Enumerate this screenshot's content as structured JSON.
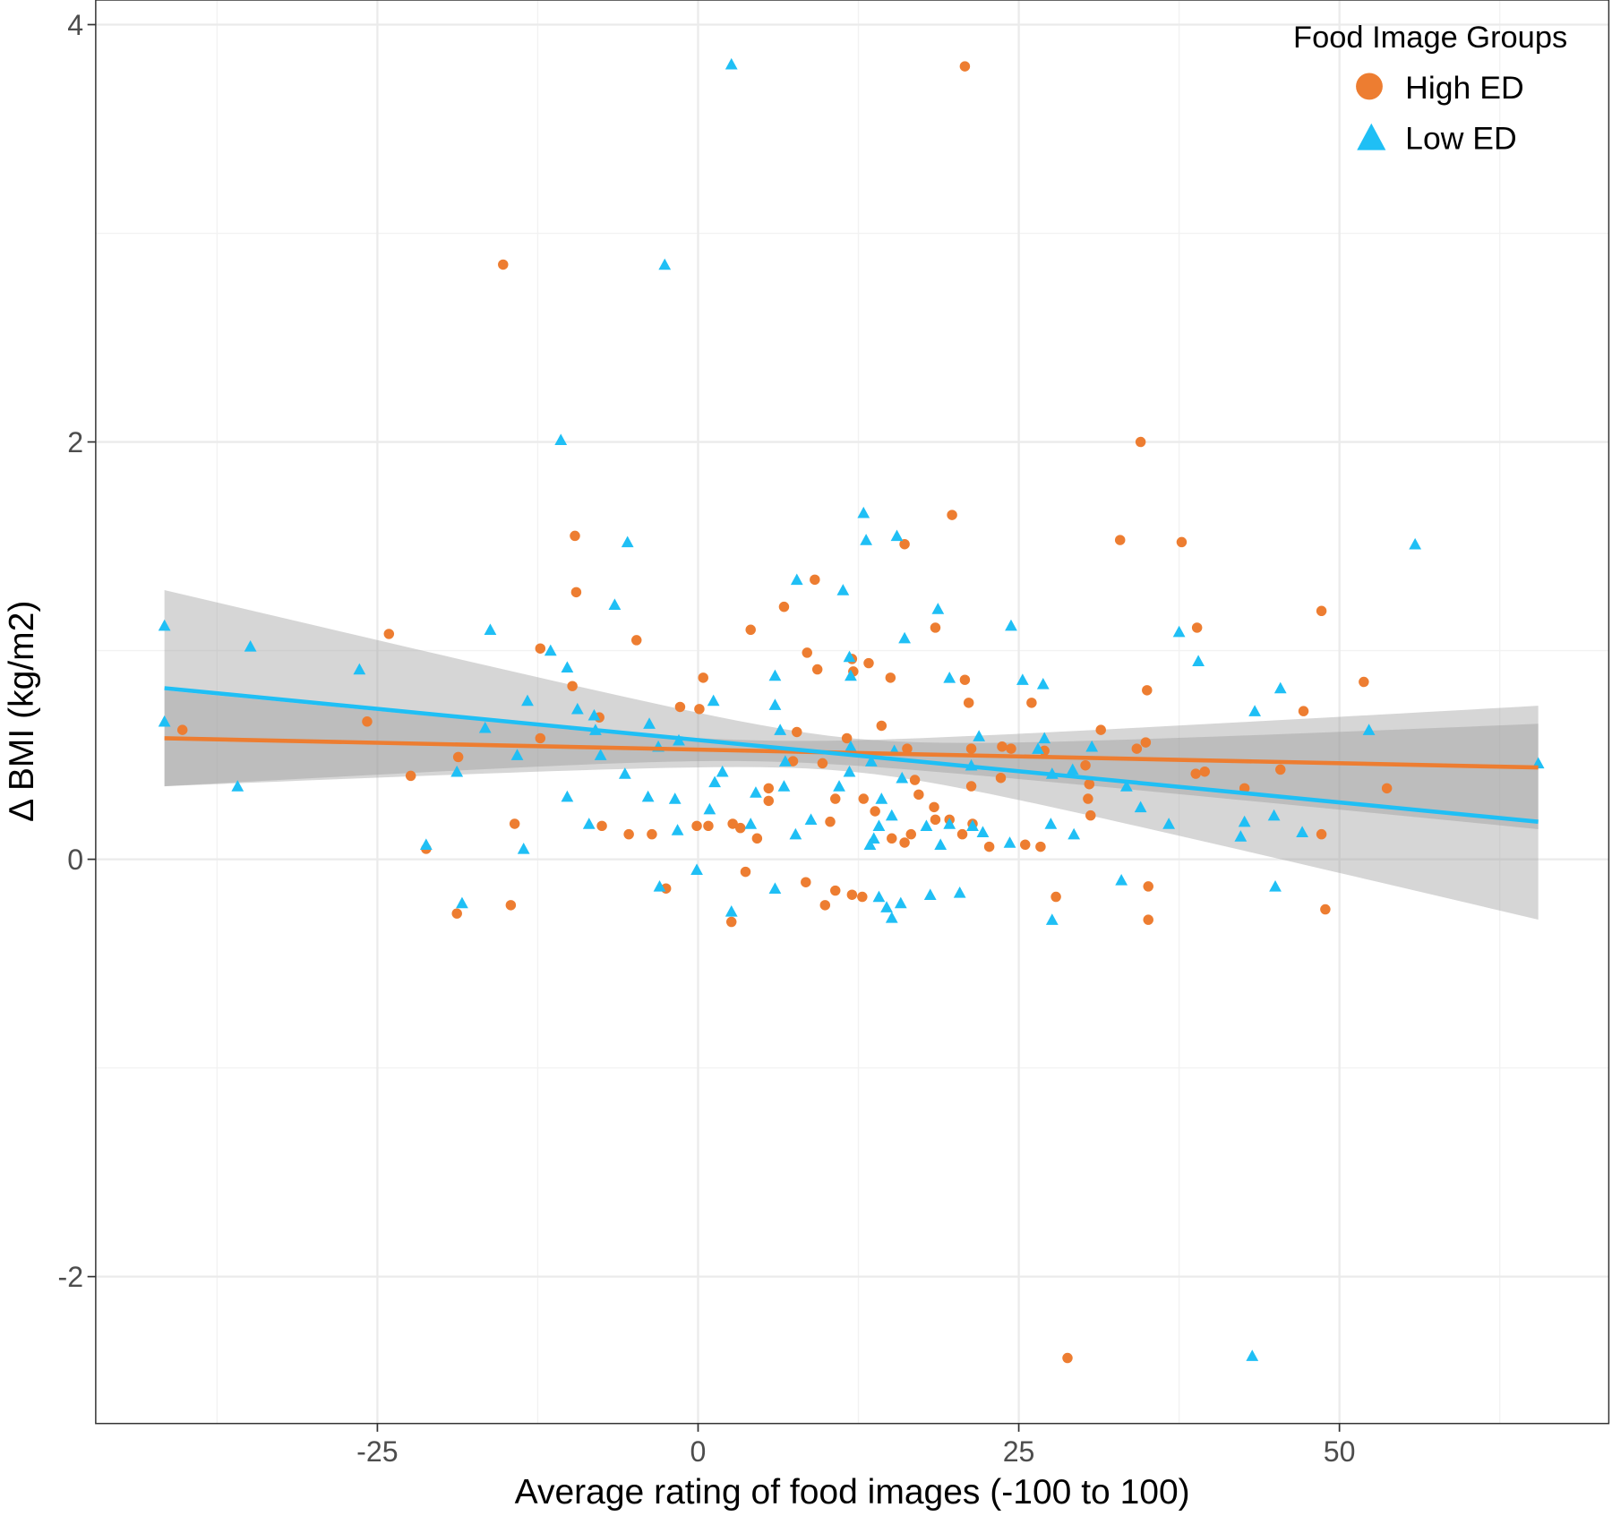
{
  "chart_data": {
    "type": "scatter",
    "title": "",
    "xlabel": "Average rating of food images (-100 to 100)",
    "ylabel": "Δ BMI (kg/m2)",
    "xlim": [
      -46.96,
      71.0
    ],
    "ylim": [
      -2.704,
      4.118
    ],
    "x_ticks": [
      -25,
      0,
      25,
      50
    ],
    "x_tick_labels": [
      "-25",
      "0",
      "25",
      "50"
    ],
    "y_ticks": [
      -2,
      0,
      2,
      4
    ],
    "y_tick_labels": [
      "-2",
      "0",
      "2",
      "4"
    ],
    "grid": true,
    "legend": {
      "title": "Food Image Groups",
      "placement": "top-right"
    },
    "series": [
      {
        "name": "High ED",
        "marker": "circle",
        "color": "#ED7D31",
        "fit": {
          "x_range": [
            -41.6,
            65.5
          ],
          "y_at_start": 0.58,
          "y_at_end": 0.44,
          "se_min": 0.05,
          "se_center_x": 5,
          "se_k": 2.32e-05
        },
        "points": [
          [
            20.8,
            3.8
          ],
          [
            -15.2,
            2.85
          ],
          [
            34.5,
            2.0
          ],
          [
            19.8,
            1.65
          ],
          [
            -9.6,
            1.55
          ],
          [
            32.9,
            1.53
          ],
          [
            37.7,
            1.52
          ],
          [
            16.1,
            1.51
          ],
          [
            -9.5,
            1.28
          ],
          [
            9.1,
            1.34
          ],
          [
            6.7,
            1.21
          ],
          [
            48.6,
            1.19
          ],
          [
            -24.1,
            1.08
          ],
          [
            4.1,
            1.1
          ],
          [
            18.5,
            1.11
          ],
          [
            38.9,
            1.11
          ],
          [
            -4.8,
            1.05
          ],
          [
            -12.3,
            1.01
          ],
          [
            8.5,
            0.99
          ],
          [
            12.0,
            0.96
          ],
          [
            13.3,
            0.94
          ],
          [
            9.3,
            0.91
          ],
          [
            12.1,
            0.9
          ],
          [
            0.4,
            0.87
          ],
          [
            15.0,
            0.87
          ],
          [
            20.8,
            0.86
          ],
          [
            51.9,
            0.85
          ],
          [
            -9.8,
            0.83
          ],
          [
            35.0,
            0.81
          ],
          [
            -1.4,
            0.73
          ],
          [
            0.1,
            0.72
          ],
          [
            21.1,
            0.75
          ],
          [
            26.0,
            0.75
          ],
          [
            47.2,
            0.71
          ],
          [
            -40.2,
            0.62
          ],
          [
            -25.8,
            0.66
          ],
          [
            -7.7,
            0.68
          ],
          [
            14.3,
            0.64
          ],
          [
            31.4,
            0.62
          ],
          [
            7.7,
            0.61
          ],
          [
            -12.3,
            0.58
          ],
          [
            11.6,
            0.58
          ],
          [
            34.9,
            0.56
          ],
          [
            21.3,
            0.53
          ],
          [
            23.7,
            0.54
          ],
          [
            24.4,
            0.53
          ],
          [
            27.0,
            0.52
          ],
          [
            16.3,
            0.53
          ],
          [
            34.2,
            0.53
          ],
          [
            -18.7,
            0.49
          ],
          [
            7.4,
            0.47
          ],
          [
            9.7,
            0.46
          ],
          [
            30.2,
            0.45
          ],
          [
            16.9,
            0.38
          ],
          [
            30.5,
            0.36
          ],
          [
            38.8,
            0.41
          ],
          [
            39.5,
            0.42
          ],
          [
            45.4,
            0.43
          ],
          [
            -22.4,
            0.4
          ],
          [
            21.3,
            0.35
          ],
          [
            23.6,
            0.39
          ],
          [
            5.5,
            0.34
          ],
          [
            42.6,
            0.34
          ],
          [
            53.7,
            0.34
          ],
          [
            17.2,
            0.31
          ],
          [
            10.7,
            0.29
          ],
          [
            12.9,
            0.29
          ],
          [
            30.4,
            0.29
          ],
          [
            5.5,
            0.28
          ],
          [
            18.4,
            0.25
          ],
          [
            13.8,
            0.23
          ],
          [
            30.6,
            0.21
          ],
          [
            18.5,
            0.19
          ],
          [
            10.3,
            0.18
          ],
          [
            21.4,
            0.17
          ],
          [
            -14.3,
            0.17
          ],
          [
            -7.5,
            0.16
          ],
          [
            -0.1,
            0.16
          ],
          [
            0.8,
            0.16
          ],
          [
            2.7,
            0.17
          ],
          [
            3.3,
            0.15
          ],
          [
            19.6,
            0.19
          ],
          [
            -5.4,
            0.12
          ],
          [
            -3.6,
            0.12
          ],
          [
            4.6,
            0.1
          ],
          [
            15.1,
            0.1
          ],
          [
            16.1,
            0.08
          ],
          [
            20.6,
            0.12
          ],
          [
            22.7,
            0.06
          ],
          [
            25.5,
            0.07
          ],
          [
            26.7,
            0.06
          ],
          [
            48.6,
            0.12
          ],
          [
            16.6,
            0.12
          ],
          [
            -21.2,
            0.05
          ],
          [
            3.7,
            -0.06
          ],
          [
            8.4,
            -0.11
          ],
          [
            -2.5,
            -0.14
          ],
          [
            10.7,
            -0.15
          ],
          [
            12.0,
            -0.17
          ],
          [
            12.8,
            -0.18
          ],
          [
            35.1,
            -0.13
          ],
          [
            9.9,
            -0.22
          ],
          [
            -14.6,
            -0.22
          ],
          [
            27.9,
            -0.18
          ],
          [
            -18.8,
            -0.26
          ],
          [
            48.9,
            -0.24
          ],
          [
            2.6,
            -0.3
          ],
          [
            35.1,
            -0.29
          ],
          [
            28.8,
            -2.39
          ]
        ]
      },
      {
        "name": "Low ED",
        "marker": "triangle",
        "color": "#1FBFF5",
        "fit": {
          "x_range": [
            -41.6,
            65.5
          ],
          "y_at_start": 0.82,
          "y_at_end": 0.18,
          "se_min": 0.08,
          "se_center_x": 12,
          "se_k": 7.47e-05
        },
        "points": [
          [
            2.6,
            3.81
          ],
          [
            -2.6,
            2.85
          ],
          [
            -10.7,
            2.01
          ],
          [
            12.9,
            1.66
          ],
          [
            -5.5,
            1.52
          ],
          [
            13.1,
            1.53
          ],
          [
            15.5,
            1.55
          ],
          [
            55.9,
            1.51
          ],
          [
            7.7,
            1.34
          ],
          [
            11.3,
            1.29
          ],
          [
            -6.5,
            1.22
          ],
          [
            18.7,
            1.2
          ],
          [
            -41.6,
            1.12
          ],
          [
            -16.2,
            1.1
          ],
          [
            24.4,
            1.12
          ],
          [
            37.5,
            1.09
          ],
          [
            16.1,
            1.06
          ],
          [
            -34.9,
            1.02
          ],
          [
            -11.5,
            1.0
          ],
          [
            11.8,
            0.97
          ],
          [
            -10.2,
            0.92
          ],
          [
            -26.4,
            0.91
          ],
          [
            39.0,
            0.95
          ],
          [
            11.9,
            0.88
          ],
          [
            6.0,
            0.88
          ],
          [
            19.6,
            0.87
          ],
          [
            25.3,
            0.86
          ],
          [
            26.9,
            0.84
          ],
          [
            45.4,
            0.82
          ],
          [
            1.2,
            0.76
          ],
          [
            -13.3,
            0.76
          ],
          [
            6.0,
            0.74
          ],
          [
            -9.4,
            0.72
          ],
          [
            43.4,
            0.71
          ],
          [
            -8.1,
            0.69
          ],
          [
            -41.6,
            0.66
          ],
          [
            -3.8,
            0.65
          ],
          [
            -16.6,
            0.63
          ],
          [
            6.4,
            0.62
          ],
          [
            52.3,
            0.62
          ],
          [
            21.9,
            0.59
          ],
          [
            27.0,
            0.58
          ],
          [
            -8.0,
            0.62
          ],
          [
            -1.5,
            0.57
          ],
          [
            -3.1,
            0.54
          ],
          [
            11.9,
            0.54
          ],
          [
            15.3,
            0.52
          ],
          [
            30.7,
            0.54
          ],
          [
            26.5,
            0.53
          ],
          [
            -7.6,
            0.5
          ],
          [
            -14.1,
            0.5
          ],
          [
            6.8,
            0.47
          ],
          [
            13.5,
            0.47
          ],
          [
            65.5,
            0.46
          ],
          [
            -18.8,
            0.42
          ],
          [
            1.9,
            0.42
          ],
          [
            11.8,
            0.42
          ],
          [
            -5.7,
            0.41
          ],
          [
            21.3,
            0.45
          ],
          [
            27.6,
            0.41
          ],
          [
            29.2,
            0.43
          ],
          [
            1.3,
            0.37
          ],
          [
            15.9,
            0.39
          ],
          [
            33.4,
            0.35
          ],
          [
            -35.9,
            0.35
          ],
          [
            6.7,
            0.35
          ],
          [
            11.0,
            0.35
          ],
          [
            4.5,
            0.32
          ],
          [
            -3.9,
            0.3
          ],
          [
            -1.8,
            0.29
          ],
          [
            -10.2,
            0.3
          ],
          [
            14.3,
            0.29
          ],
          [
            34.5,
            0.25
          ],
          [
            0.9,
            0.24
          ],
          [
            15.1,
            0.21
          ],
          [
            44.9,
            0.21
          ],
          [
            8.8,
            0.19
          ],
          [
            -8.5,
            0.17
          ],
          [
            4.1,
            0.17
          ],
          [
            14.1,
            0.16
          ],
          [
            17.8,
            0.16
          ],
          [
            36.7,
            0.17
          ],
          [
            42.6,
            0.18
          ],
          [
            27.5,
            0.17
          ],
          [
            19.6,
            0.17
          ],
          [
            21.4,
            0.16
          ],
          [
            -1.6,
            0.14
          ],
          [
            22.2,
            0.13
          ],
          [
            29.3,
            0.12
          ],
          [
            47.1,
            0.13
          ],
          [
            7.6,
            0.12
          ],
          [
            13.7,
            0.1
          ],
          [
            42.3,
            0.11
          ],
          [
            -21.2,
            0.07
          ],
          [
            13.4,
            0.07
          ],
          [
            18.9,
            0.07
          ],
          [
            24.3,
            0.08
          ],
          [
            -13.6,
            0.05
          ],
          [
            -0.1,
            -0.05
          ],
          [
            33.0,
            -0.1
          ],
          [
            -3.0,
            -0.13
          ],
          [
            6.0,
            -0.14
          ],
          [
            45.0,
            -0.13
          ],
          [
            20.4,
            -0.16
          ],
          [
            18.1,
            -0.17
          ],
          [
            14.1,
            -0.18
          ],
          [
            -18.4,
            -0.21
          ],
          [
            15.8,
            -0.21
          ],
          [
            14.7,
            -0.23
          ],
          [
            2.6,
            -0.25
          ],
          [
            15.1,
            -0.28
          ],
          [
            27.6,
            -0.29
          ],
          [
            43.2,
            -2.38
          ]
        ]
      }
    ]
  }
}
